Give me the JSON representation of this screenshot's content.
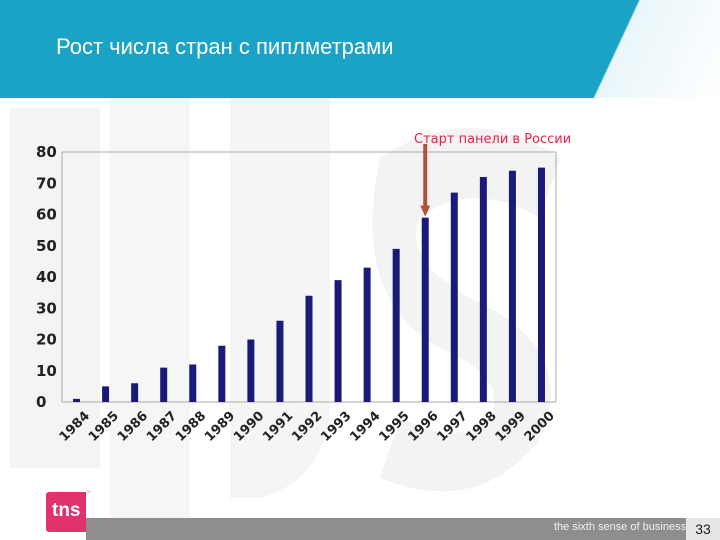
{
  "slide": {
    "title": "Рост числа стран с пиплметрами",
    "page_number": "33",
    "logo_text": "tns",
    "trademark": "™",
    "slogan": "the sixth sense of business™"
  },
  "colors": {
    "header": "#1aa3c4",
    "bar": "#1a1a7a",
    "annotation": "#e8244a",
    "arrow": "#b0523a",
    "logo": "#e0336b"
  },
  "chart_data": {
    "type": "bar",
    "categories": [
      "1984",
      "1985",
      "1986",
      "1987",
      "1988",
      "1989",
      "1990",
      "1991",
      "1992",
      "1993",
      "1994",
      "1995",
      "1996",
      "1997",
      "1998",
      "1999",
      "2000"
    ],
    "values": [
      1,
      5,
      6,
      11,
      12,
      18,
      20,
      26,
      34,
      39,
      43,
      49,
      59,
      67,
      72,
      74,
      75
    ],
    "yticks": [
      "0",
      "10",
      "20",
      "30",
      "40",
      "50",
      "60",
      "70",
      "80"
    ],
    "ylim": [
      0,
      80
    ],
    "grid": false,
    "legend": "none",
    "annotation": {
      "text": "Старт панели в России",
      "category": "1996"
    }
  }
}
